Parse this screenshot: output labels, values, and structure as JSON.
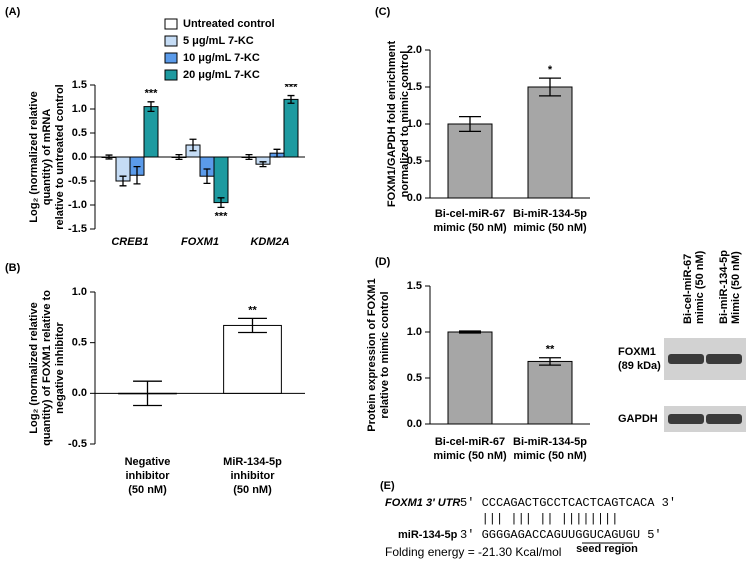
{
  "chart_data": [
    {
      "type": "bar",
      "panel": "(A)",
      "ylabel": [
        "Log₂ (normalized relative",
        "quantity) of mRNA",
        "relative to untreated control"
      ],
      "categories": [
        [
          "CREB1"
        ],
        [
          "FOXM1"
        ],
        [
          "KDM2A"
        ]
      ],
      "series": [
        {
          "name": "Untreated control",
          "color": "#ffffff",
          "values": [
            0,
            0,
            0
          ],
          "errors": [
            0.04,
            0.05,
            0.05
          ]
        },
        {
          "name": "5 μg/mL 7-KC",
          "color": "#c5dcf5",
          "values": [
            -0.5,
            0.25,
            -0.15
          ],
          "errors": [
            0.1,
            0.12,
            0.05
          ]
        },
        {
          "name": "10 μg/mL 7-KC",
          "color": "#5b9bea",
          "values": [
            -0.38,
            -0.4,
            0.08
          ],
          "errors": [
            0.18,
            0.15,
            0.08
          ]
        },
        {
          "name": "20 μg/mL 7-KC",
          "color": "#1e9aa0",
          "values": [
            1.05,
            -0.95,
            1.2
          ],
          "errors": [
            0.1,
            0.1,
            0.08
          ],
          "significance": [
            "***",
            "***",
            "***"
          ]
        }
      ],
      "ylim": [
        -1.5,
        1.5
      ],
      "yticks": [
        -1.5,
        {
          "value": -1,
          "label": "-1.0"
        },
        -0.5,
        {
          "value": 0,
          "label": "0.0"
        },
        0.5,
        {
          "value": 1,
          "label": "1.0"
        },
        1.5
      ]
    },
    {
      "type": "bar",
      "panel": "(B)",
      "ylabel": [
        "Log₂ (normalized relative",
        "quantity) of FOXM1 relative to",
        "negative inhibitor"
      ],
      "categories": [
        [
          "Negative",
          "inhibitor",
          "(50 nM)"
        ],
        [
          "MiR-134-5p",
          "inhibitor",
          "(50 nM)"
        ]
      ],
      "values": [
        0,
        0.67
      ],
      "errors": [
        0.12,
        0.07
      ],
      "significance": [
        null,
        "**"
      ],
      "color": "#ffffff",
      "ylim": [
        -0.5,
        1
      ],
      "yticks": [
        -0.5,
        {
          "value": 0,
          "label": "0.0"
        },
        0.5,
        {
          "value": 1,
          "label": "1.0"
        }
      ]
    },
    {
      "type": "bar",
      "panel": "(C)",
      "ylabel": [
        "FOXM1/GAPDH fold enrichment",
        "normalized to mimic control"
      ],
      "categories": [
        [
          "Bi-cel-miR-67",
          "mimic (50 nM)"
        ],
        [
          "Bi-miR-134-5p",
          "mimic (50 nM)"
        ]
      ],
      "values": [
        1,
        1.5
      ],
      "errors": [
        0.1,
        0.12
      ],
      "significance": [
        null,
        "*"
      ],
      "color": "#a6a6a6",
      "ylim": [
        0,
        2
      ],
      "yticks": [
        {
          "value": 0,
          "label": "0.0"
        },
        0.5,
        {
          "value": 1,
          "label": "1.0"
        },
        1.5,
        {
          "value": 2,
          "label": "2.0"
        }
      ]
    },
    {
      "type": "bar",
      "panel": "(D)",
      "ylabel": [
        "Protein expression of FOXM1",
        "relative to mimic control"
      ],
      "categories": [
        [
          "Bi-cel-miR-67",
          "mimic (50 nM)"
        ],
        [
          "Bi-miR-134-5p",
          "mimic (50 nM)"
        ]
      ],
      "values": [
        1,
        0.68
      ],
      "errors": [
        0.01,
        0.04
      ],
      "significance": [
        null,
        "**"
      ],
      "color": "#a6a6a6",
      "ylim": [
        0,
        1.5
      ],
      "yticks": [
        {
          "value": 0,
          "label": "0.0"
        },
        0.5,
        {
          "value": 1,
          "label": "1.0"
        },
        1.5
      ],
      "blot": {
        "lanes": [
          [
            "Bi-cel-miR-67",
            "mimic (50 nM)"
          ],
          [
            "Bi-miR-134-5p",
            "Mimic (50 nM)"
          ]
        ],
        "bands": [
          [
            "FOXM1",
            "(89 kDa)"
          ],
          [
            "GAPDH"
          ]
        ]
      }
    }
  ],
  "alignment": {
    "panel": "(E)",
    "target_label": "FOXM1 3′ UTR",
    "target": "5′ CCCAGACTGCCTCACTCAGTCACA 3′",
    "pairs": "|||   |||  ||  ||||||||",
    "mirna_label": "miR-134-5p",
    "mirna": "3′ GGGGAGACCAGUUGGUCAGUGU 5′",
    "seed_label": "seed region",
    "folding_energy": "Folding energy = -21.30 Kcal/mol"
  }
}
